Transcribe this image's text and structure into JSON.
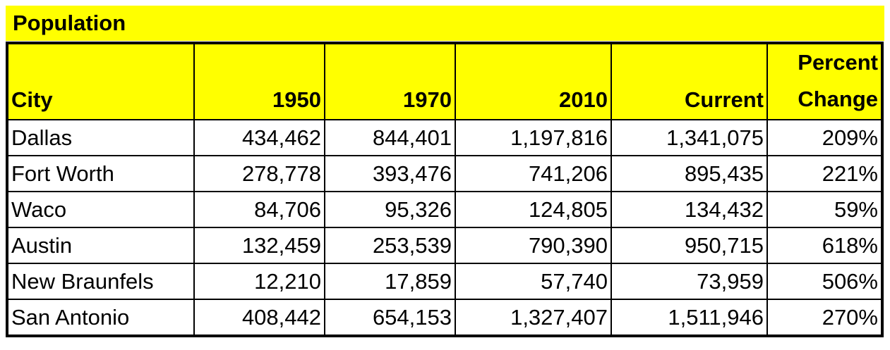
{
  "title": "Population",
  "table": {
    "header": [
      "City",
      "1950",
      "1970",
      "2010",
      "Current",
      "Percent Change"
    ],
    "rows": [
      [
        "Dallas",
        "434,462",
        "844,401",
        "1,197,816",
        "1,341,075",
        "209%"
      ],
      [
        "Fort Worth",
        "278,778",
        "393,476",
        "741,206",
        "895,435",
        "221%"
      ],
      [
        "Waco",
        "84,706",
        "95,326",
        "124,805",
        "134,432",
        "59%"
      ],
      [
        "Austin",
        "132,459",
        "253,539",
        "790,390",
        "950,715",
        "618%"
      ],
      [
        "New Braunfels",
        "12,210",
        "17,859",
        "57,740",
        "73,959",
        "506%"
      ],
      [
        "San Antonio",
        "408,442",
        "654,153",
        "1,327,407",
        "1,511,946",
        "270%"
      ]
    ]
  }
}
